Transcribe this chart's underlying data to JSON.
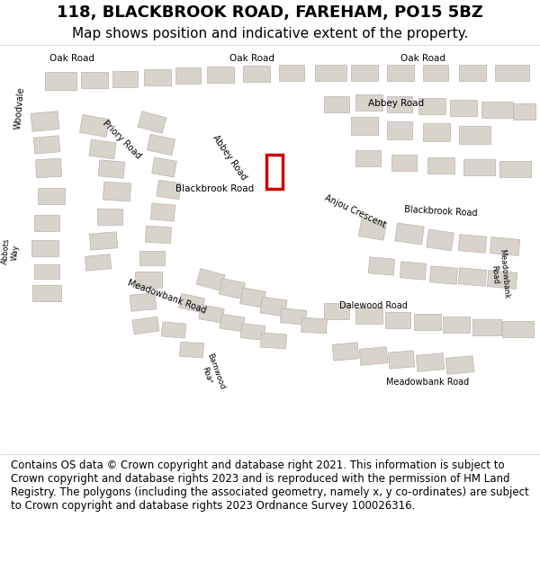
{
  "title_line1": "118, BLACKBROOK ROAD, FAREHAM, PO15 5BZ",
  "title_line2": "Map shows position and indicative extent of the property.",
  "footer_text": "Contains OS data © Crown copyright and database right 2021. This information is subject to Crown copyright and database rights 2023 and is reproduced with the permission of HM Land Registry. The polygons (including the associated geometry, namely x, y co-ordinates) are subject to Crown copyright and database rights 2023 Ordnance Survey 100026316.",
  "bg_color": "#f0ede8",
  "road_color": "#ffffff",
  "building_color": "#d8d4cc",
  "building_edge": "#b8b4ac",
  "red_rect_color": "#cc0000",
  "map_area_color": "#e8e4de",
  "header_bg": "#ffffff",
  "footer_bg": "#ffffff",
  "title_fontsize": 13,
  "subtitle_fontsize": 11,
  "footer_fontsize": 8.5
}
